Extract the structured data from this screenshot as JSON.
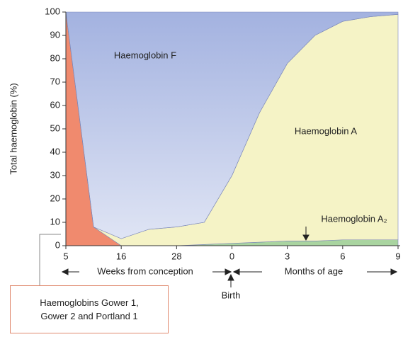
{
  "chart_data": {
    "type": "stacked_area",
    "ylabel": "Total haemoglobin (%)",
    "categories": [
      "5",
      null,
      "16",
      null,
      "28",
      null,
      "0",
      null,
      "3",
      null,
      "6",
      null,
      "9"
    ],
    "xlabel_left": "Weeks from conception",
    "xlabel_right": "Months of age",
    "annotation": "Birth",
    "ylim": [
      0,
      100
    ],
    "yticks": [
      0,
      10,
      20,
      30,
      40,
      50,
      60,
      70,
      80,
      90,
      100
    ],
    "series": [
      {
        "name": "Haemoglobins Gower 1, Gower 2 and Portland 1",
        "color": "#f08a6e",
        "values": [
          100,
          8,
          0,
          0,
          0,
          0,
          0,
          0,
          0,
          0,
          0,
          0,
          0
        ]
      },
      {
        "name": "Haemoglobin A₂",
        "color": "#a9d4a0",
        "values": [
          0,
          0,
          0,
          0,
          0,
          0.5,
          1,
          1.5,
          2,
          2,
          2.5,
          2.5,
          2.5
        ]
      },
      {
        "name": "Haemoglobin A",
        "color": "#f5f3c6",
        "values": [
          0,
          0,
          3,
          7,
          8,
          9.5,
          29,
          55.5,
          76,
          88,
          93.5,
          95.5,
          96.5
        ]
      },
      {
        "name": "Haemoglobin F",
        "color": "#a3b2e0",
        "values": [
          0,
          92,
          97,
          93,
          92,
          90,
          70,
          43,
          22,
          10,
          4,
          2,
          1
        ]
      }
    ]
  }
}
